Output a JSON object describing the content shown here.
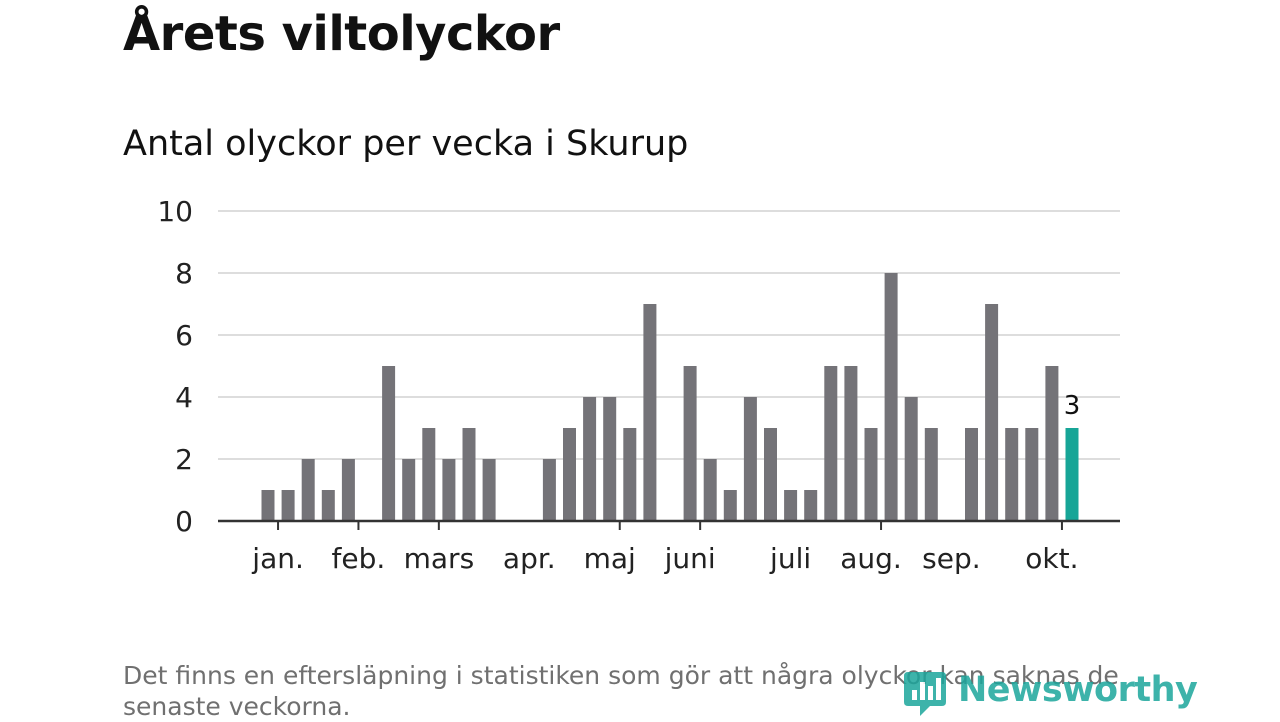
{
  "title": "Årets viltolyckor",
  "subtitle": "Antal olyckor per vecka i Skurup",
  "footnote": "Det finns en eftersläpning i statistiken som gör att några olyckor kan saknas de senaste veckorna.",
  "logo_text": "Newsworthy",
  "colors": {
    "bar": "#747378",
    "highlight": "#17a597",
    "grid": "#dddddd",
    "axis": "#333333",
    "text": "#222222"
  },
  "chart_data": {
    "type": "bar",
    "title": "Antal olyckor per vecka i Skurup",
    "xlabel": "",
    "ylabel": "",
    "ylim": [
      0,
      10
    ],
    "yticks": [
      0,
      2,
      4,
      6,
      8,
      10
    ],
    "weeks": [
      1,
      2,
      3,
      4,
      5,
      6,
      7,
      8,
      9,
      10,
      11,
      12,
      13,
      14,
      15,
      16,
      17,
      18,
      19,
      20,
      21,
      22,
      23,
      24,
      25,
      26,
      27,
      28,
      29,
      30,
      31,
      32,
      33,
      34,
      35,
      36,
      37,
      38,
      39,
      40,
      41
    ],
    "values": [
      1,
      1,
      2,
      1,
      2,
      0,
      5,
      2,
      3,
      2,
      3,
      2,
      0,
      0,
      2,
      3,
      4,
      4,
      3,
      7,
      0,
      5,
      2,
      1,
      4,
      3,
      1,
      1,
      5,
      5,
      3,
      8,
      4,
      3,
      0,
      3,
      7,
      3,
      3,
      5,
      3
    ],
    "highlight_index": 40,
    "highlight_label": "3",
    "month_labels": [
      {
        "label": "jan.",
        "week": 1.5
      },
      {
        "label": "feb.",
        "week": 5.5
      },
      {
        "label": "mars",
        "week": 9.5
      },
      {
        "label": "apr.",
        "week": 14
      },
      {
        "label": "maj",
        "week": 18
      },
      {
        "label": "juni",
        "week": 22
      },
      {
        "label": "juli",
        "week": 27
      },
      {
        "label": "aug.",
        "week": 31
      },
      {
        "label": "sep.",
        "week": 35
      },
      {
        "label": "okt.",
        "week": 40
      }
    ],
    "month_tick_weeks": [
      1.5,
      5.5,
      9.5,
      18.5,
      22.5,
      31.5,
      40.5
    ],
    "grid": true,
    "legend": "none"
  }
}
